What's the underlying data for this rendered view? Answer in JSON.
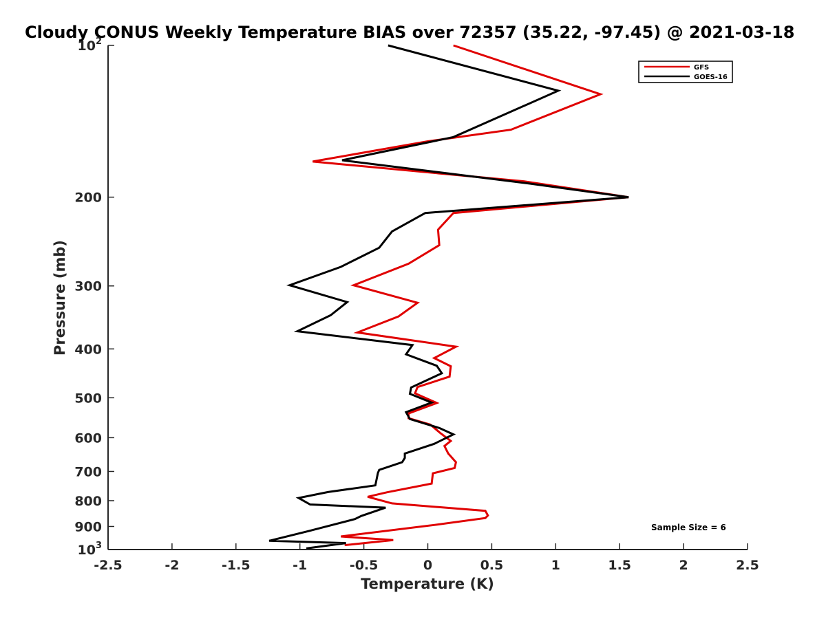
{
  "chart_data": {
    "type": "line",
    "title": "Cloudy CONUS Weekly Temperature BIAS over 72357 (35.22, -97.45) @ 2021-03-18",
    "xlabel": "Temperature (K)",
    "ylabel": "Pressure (mb)",
    "xlim": [
      -2.5,
      2.5
    ],
    "ylim": [
      100,
      1000
    ],
    "y_scale": "log",
    "y_reversed": true,
    "grid": false,
    "legend_placement": "top-right",
    "x_ticks": [
      "-2.5",
      "-2",
      "-1.5",
      "-1",
      "-0.5",
      "0",
      "0.5",
      "1",
      "1.5",
      "2",
      "2.5"
    ],
    "y_ticks": [
      {
        "value": 100,
        "base": "10",
        "exp": "2"
      },
      {
        "value": 200,
        "label": "200"
      },
      {
        "value": 300,
        "label": "300"
      },
      {
        "value": 400,
        "label": "400"
      },
      {
        "value": 500,
        "label": "500"
      },
      {
        "value": 600,
        "label": "600"
      },
      {
        "value": 700,
        "label": "700"
      },
      {
        "value": 800,
        "label": "800"
      },
      {
        "value": 900,
        "label": "900"
      },
      {
        "value": 1000,
        "base": "10",
        "exp": "3"
      }
    ],
    "series": [
      {
        "name": "GFS",
        "color": "#e00000",
        "points": [
          [
            0.2,
            100
          ],
          [
            1.35,
            125
          ],
          [
            0.65,
            147
          ],
          [
            0,
            155
          ],
          [
            -0.9,
            170
          ],
          [
            0.75,
            186
          ],
          [
            1.57,
            200
          ],
          [
            0.2,
            215
          ],
          [
            0.08,
            232
          ],
          [
            0.09,
            249
          ],
          [
            -0.15,
            271
          ],
          [
            -0.58,
            299
          ],
          [
            -0.08,
            324
          ],
          [
            -0.23,
            345
          ],
          [
            -0.55,
            371
          ],
          [
            0.22,
            396
          ],
          [
            0.05,
            417
          ],
          [
            0.18,
            433
          ],
          [
            0.17,
            454
          ],
          [
            -0.08,
            476
          ],
          [
            -0.1,
            490
          ],
          [
            0.07,
            512
          ],
          [
            -0.15,
            537
          ],
          [
            -0.15,
            549
          ],
          [
            0.02,
            565
          ],
          [
            0.1,
            588
          ],
          [
            0.18,
            609
          ],
          [
            0.13,
            623
          ],
          [
            0.16,
            645
          ],
          [
            0.22,
            671
          ],
          [
            0.21,
            689
          ],
          [
            0.04,
            706
          ],
          [
            0.03,
            740
          ],
          [
            -0.32,
            770
          ],
          [
            -0.47,
            786
          ],
          [
            -0.28,
            810
          ],
          [
            0.45,
            838
          ],
          [
            0.47,
            856
          ],
          [
            0.45,
            866
          ],
          [
            0.05,
            894
          ],
          [
            -0.68,
            942
          ],
          [
            -0.27,
            958
          ],
          [
            -0.65,
            980
          ]
        ]
      },
      {
        "name": "GOES-16",
        "color": "#000000",
        "points": [
          [
            -0.31,
            100
          ],
          [
            1.02,
            123
          ],
          [
            0.2,
            152
          ],
          [
            -0.67,
            169
          ],
          [
            0.8,
            188
          ],
          [
            1.57,
            200
          ],
          [
            -0.02,
            215
          ],
          [
            -0.28,
            234
          ],
          [
            -0.38,
            252
          ],
          [
            -0.68,
            275
          ],
          [
            -1.08,
            299
          ],
          [
            -0.63,
            323
          ],
          [
            -0.76,
            343
          ],
          [
            -1.02,
            369
          ],
          [
            -0.12,
            393
          ],
          [
            -0.17,
            410
          ],
          [
            0.07,
            432
          ],
          [
            0.11,
            447
          ],
          [
            -0.13,
            477
          ],
          [
            -0.14,
            491
          ],
          [
            0.03,
            511
          ],
          [
            -0.17,
            534
          ],
          [
            -0.14,
            551
          ],
          [
            0.09,
            574
          ],
          [
            0.2,
            591
          ],
          [
            0.05,
            617
          ],
          [
            -0.18,
            645
          ],
          [
            -0.18,
            658
          ],
          [
            -0.2,
            671
          ],
          [
            -0.38,
            695
          ],
          [
            -0.39,
            705
          ],
          [
            -0.41,
            746
          ],
          [
            -0.78,
            769
          ],
          [
            -1.01,
            790
          ],
          [
            -0.92,
            814
          ],
          [
            -0.33,
            826
          ],
          [
            -0.52,
            858
          ],
          [
            -0.57,
            870
          ],
          [
            -0.93,
            919
          ],
          [
            -1.24,
            961
          ],
          [
            -0.64,
            971
          ],
          [
            -0.95,
            995
          ]
        ]
      }
    ],
    "annotation": "Sample Size = 6"
  }
}
